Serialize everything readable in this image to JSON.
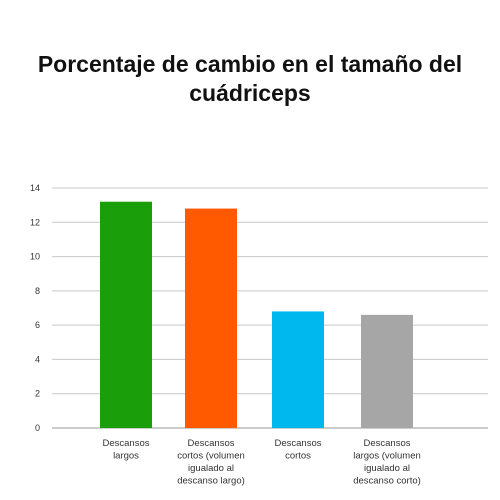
{
  "title_lines": [
    "Porcentaje de cambio en el tamaño del",
    "cuádriceps"
  ],
  "chart_data": {
    "type": "bar",
    "title": "Porcentaje de cambio en el tamaño del cuádriceps",
    "xlabel": "",
    "ylabel": "",
    "ylim": [
      0,
      14
    ],
    "yticks": [
      0,
      2,
      4,
      6,
      8,
      10,
      12,
      14
    ],
    "grid": true,
    "categories": [
      [
        "Descansos",
        "largos"
      ],
      [
        "Descansos",
        "cortos (volumen",
        "igualado al",
        "descanso largo)"
      ],
      [
        "Descansos",
        "cortos"
      ],
      [
        "Descansos",
        "largos (volumen",
        "igualado al",
        "descanso corto)"
      ]
    ],
    "values": [
      13.2,
      12.8,
      6.8,
      6.6
    ],
    "colors": [
      "#1a9e0a",
      "#ff5a00",
      "#00b8ee",
      "#a6a6a6"
    ]
  }
}
